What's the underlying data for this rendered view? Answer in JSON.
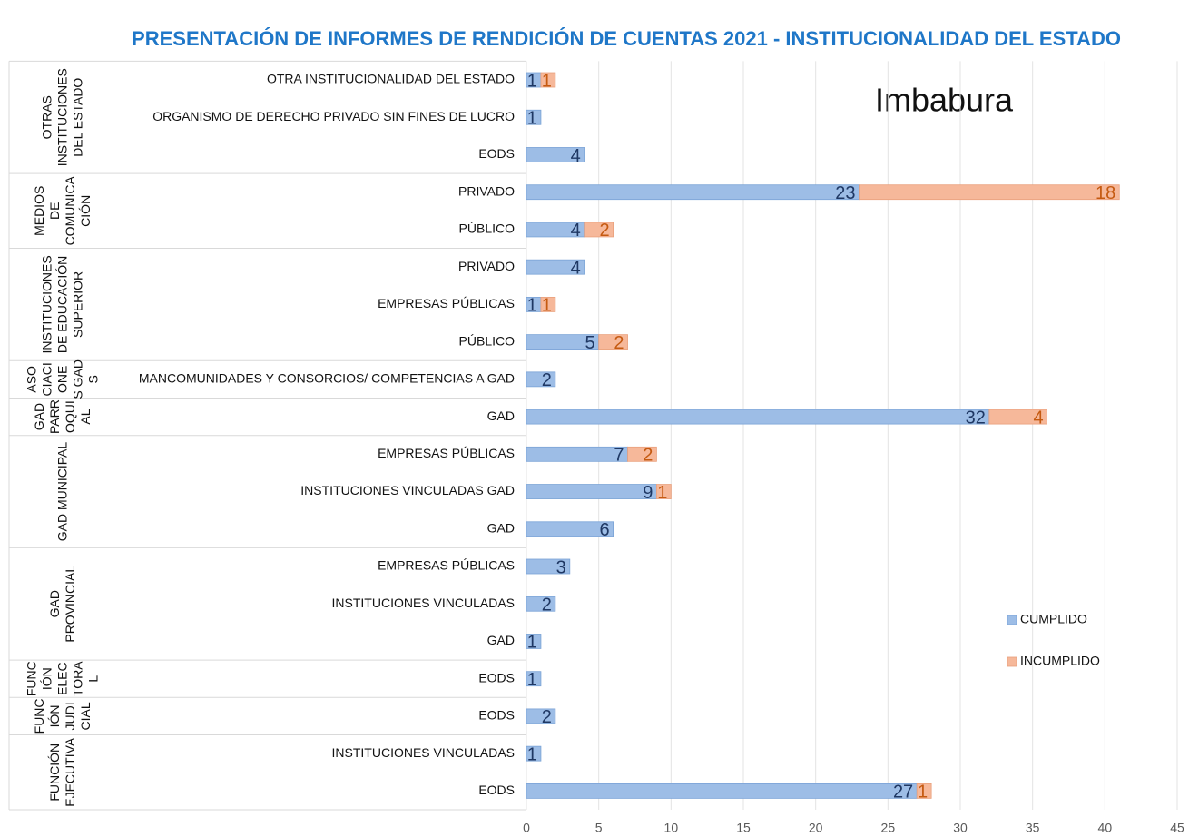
{
  "chart_data": {
    "type": "bar",
    "orientation": "horizontal",
    "stacked": true,
    "title": "PRESENTACIÓN DE INFORMES DE RENDICIÓN DE CUENTAS 2021 - INSTITUCIONALIDAD DEL ESTADO",
    "annotation": "Imbabura",
    "groups": [
      {
        "label": [
          "OTRAS",
          "INSTITUCIONES",
          "DEL ESTADO"
        ],
        "categories": [
          "OTRA INSTITUCIONALIDAD DEL ESTADO",
          "ORGANISMO DE DERECHO PRIVADO SIN FINES DE LUCRO",
          "EODS"
        ]
      },
      {
        "label": [
          "MEDIOS",
          "DE",
          "COMUNICA",
          "CIÓN"
        ],
        "categories": [
          "PRIVADO",
          "PÚBLICO"
        ]
      },
      {
        "label": [
          "INSTITUCIONES",
          "DE EDUCACIÓN",
          "SUPERIOR"
        ],
        "categories": [
          "PRIVADO",
          "EMPRESAS PÚBLICAS",
          "PÚBLICO"
        ]
      },
      {
        "label": [
          "ASO",
          "CIACI",
          "ONE",
          "S GAD",
          "S"
        ],
        "categories": [
          "MANCOMUNIDADES Y  CONSORCIOS/ COMPETENCIAS A GAD"
        ]
      },
      {
        "label": [
          "GAD",
          "PARR",
          "OQUI",
          "AL"
        ],
        "categories": [
          "GAD"
        ]
      },
      {
        "label": [
          "GAD MUNICIPAL"
        ],
        "categories": [
          "EMPRESAS PÚBLICAS",
          "INSTITUCIONES VINCULADAS GAD",
          "GAD"
        ]
      },
      {
        "label": [
          "GAD",
          "PROVINCIAL"
        ],
        "categories": [
          "EMPRESAS PÚBLICAS",
          "INSTITUCIONES VINCULADAS",
          "GAD"
        ]
      },
      {
        "label": [
          "FUNC",
          "IÓN",
          "ELEC",
          "TORA",
          "L"
        ],
        "categories": [
          "EODS"
        ]
      },
      {
        "label": [
          "FUNC",
          "IÓN",
          "JUDI",
          "CIAL"
        ],
        "categories": [
          "EODS"
        ]
      },
      {
        "label": [
          "FUNCIÓN",
          "EJECUTIVA"
        ],
        "categories": [
          "INSTITUCIONES VINCULADAS",
          "EODS"
        ]
      }
    ],
    "series": [
      {
        "name": "CUMPLIDO",
        "color": "#9dbde6",
        "label_color": "#1f3864",
        "values": [
          1,
          1,
          4,
          23,
          4,
          4,
          1,
          5,
          2,
          32,
          7,
          9,
          6,
          3,
          2,
          1,
          1,
          2,
          1,
          27
        ]
      },
      {
        "name": "INCUMPLIDO",
        "color": "#f6b89a",
        "label_color": "#c55a11",
        "values": [
          1,
          null,
          null,
          18,
          2,
          null,
          1,
          2,
          null,
          4,
          2,
          1,
          null,
          null,
          null,
          null,
          null,
          null,
          null,
          1
        ]
      }
    ],
    "xlim": [
      0,
      45
    ],
    "xticks": [
      0,
      5,
      10,
      15,
      20,
      25,
      30,
      35,
      40,
      45
    ],
    "grid": true,
    "legend": "right"
  }
}
